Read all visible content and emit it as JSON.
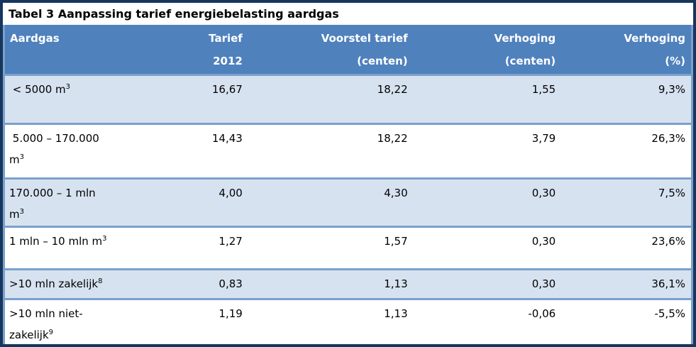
{
  "title": "Tabel 3 Aanpassing tarief energiebelasting aardgas",
  "colors": {
    "frame_border": "#17365D",
    "header_bg": "#4F81BD",
    "header_text": "#FFFFFF",
    "row_alt_bg": "#D7E2F0",
    "inner_border": "#7BA0CD"
  },
  "table": {
    "headers": [
      {
        "line1": "Aardgas",
        "line2": ""
      },
      {
        "line1": "Tarief",
        "line2": "2012"
      },
      {
        "line1": "Voorstel tarief",
        "line2": "(centen)"
      },
      {
        "line1": "Verhoging",
        "line2": "(centen)"
      },
      {
        "line1": "Verhoging",
        "line2": "(%)"
      }
    ],
    "rows": [
      {
        "category": {
          "line1": " < 5000 m",
          "line1_sup": "3",
          "line2": "",
          "line2_sup": ""
        },
        "tarief_2012": "16,67",
        "voorstel_tarief_centen": "18,22",
        "verhoging_centen": "1,55",
        "verhoging_pct": "9,3%"
      },
      {
        "category": {
          "line1": " 5.000 – 170.000",
          "line1_sup": "",
          "line2": "m",
          "line2_sup": "3"
        },
        "tarief_2012": "14,43",
        "voorstel_tarief_centen": "18,22",
        "verhoging_centen": "3,79",
        "verhoging_pct": "26,3%"
      },
      {
        "category": {
          "line1": "170.000 – 1 mln",
          "line1_sup": "",
          "line2": "m",
          "line2_sup": "3"
        },
        "tarief_2012": "4,00",
        "voorstel_tarief_centen": "4,30",
        "verhoging_centen": "0,30",
        "verhoging_pct": "7,5%"
      },
      {
        "category": {
          "line1": "1 mln – 10 mln m",
          "line1_sup": "3",
          "line2": "",
          "line2_sup": ""
        },
        "tarief_2012": "1,27",
        "voorstel_tarief_centen": "1,57",
        "verhoging_centen": "0,30",
        "verhoging_pct": "23,6%"
      },
      {
        "category": {
          "line1": ">10 mln zakelijk",
          "line1_sup": "8",
          "line2": "",
          "line2_sup": ""
        },
        "tarief_2012": "0,83",
        "voorstel_tarief_centen": "1,13",
        "verhoging_centen": "0,30",
        "verhoging_pct": "36,1%"
      },
      {
        "category": {
          "line1": ">10 mln niet-",
          "line1_sup": "",
          "line2": "zakelijk",
          "line2_sup": "9"
        },
        "tarief_2012": "1,19",
        "voorstel_tarief_centen": "1,13",
        "verhoging_centen": "-0,06",
        "verhoging_pct": "-5,5%"
      }
    ]
  }
}
